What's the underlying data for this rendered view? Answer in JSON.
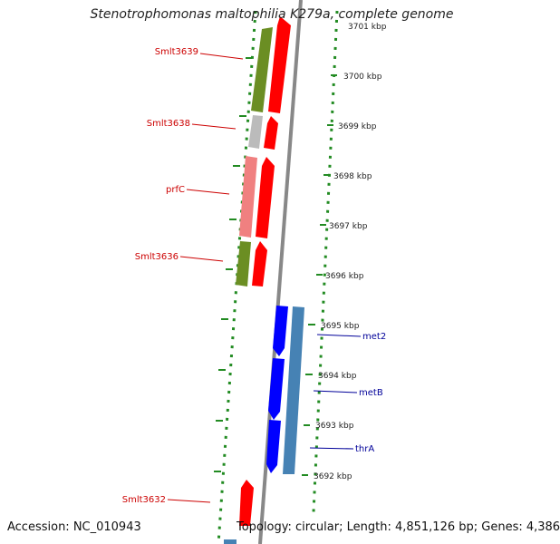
{
  "title": "Stenotrophomonas maltophilia K279a, complete genome",
  "footer": {
    "accession": "Accession: NC_010943",
    "topology": "Topology: circular; Length: 4,851,126 bp; Genes: 4,386"
  },
  "colors": {
    "reverse_genes": "#ff0000",
    "forward_genes": "#0000ff",
    "cog_olive": "#6b8e23",
    "cog_grey": "#bbbbbb",
    "cog_pink": "#f08080",
    "cog_steelblue": "#4682b4",
    "backbone": "#888888",
    "gc_dots": "#228b22",
    "left_labels": "#cc0000",
    "right_labels": "#000099"
  },
  "ticks": [
    "3701 kbp",
    "3700 kbp",
    "3699 kbp",
    "3698 kbp",
    "3697 kbp",
    "3696 kbp",
    "3695 kbp",
    "3694 kbp",
    "3693 kbp",
    "3692 kbp"
  ],
  "left_genes": [
    "Smlt3639",
    "Smlt3638",
    "prfC",
    "Smlt3636",
    "Smlt3632"
  ],
  "right_genes": [
    "met2",
    "metB",
    "thrA"
  ]
}
